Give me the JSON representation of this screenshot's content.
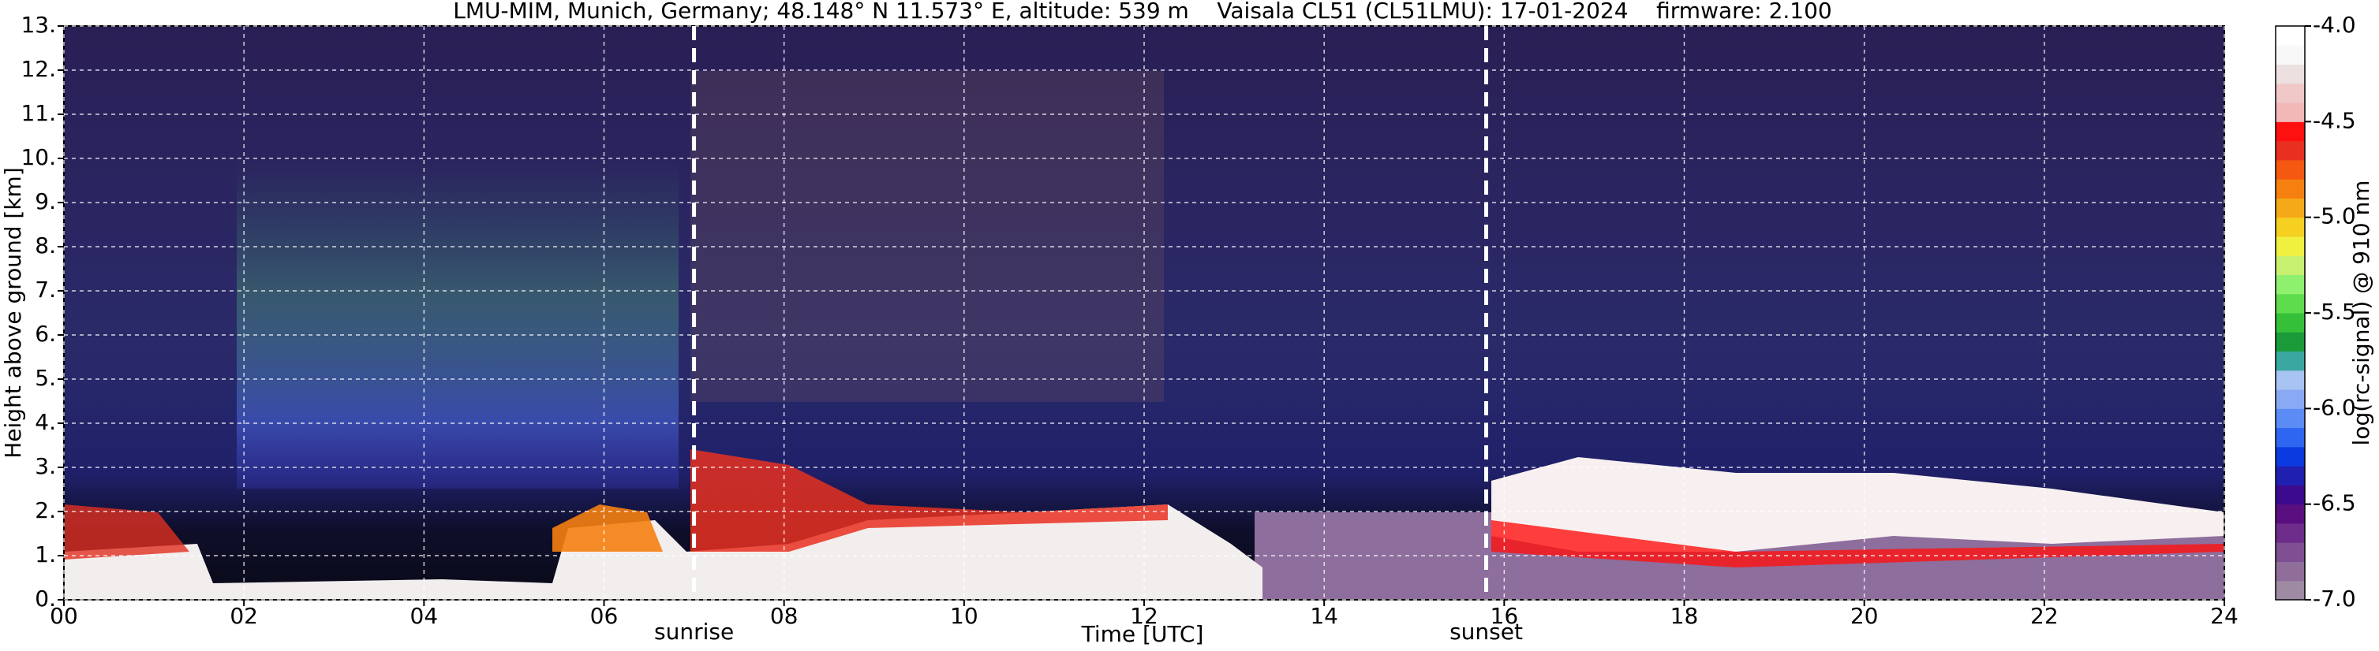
{
  "chart_data": {
    "type": "heatmap",
    "title": "LMU-MIM, Munich, Germany; 48.148° N 11.573° E, altitude: 539 m    Vaisala CL51 (CL51LMU): 17-01-2024    firmware: 2.100",
    "x_label": "Time [UTC]",
    "y_label": "Height above ground [km]",
    "xlim": [
      0,
      24
    ],
    "xticks": [
      {
        "value": 0,
        "label": "00"
      },
      {
        "value": 2,
        "label": "02"
      },
      {
        "value": 4,
        "label": "04"
      },
      {
        "value": 6,
        "label": "06"
      },
      {
        "value": 8,
        "label": "08"
      },
      10,
      12,
      14,
      16,
      18,
      20,
      22,
      24
    ],
    "ylim": [
      0,
      13
    ],
    "yticks": [
      {
        "value": 0,
        "label": "0."
      },
      {
        "value": 1,
        "label": "1."
      },
      {
        "value": 2,
        "label": "2."
      },
      {
        "value": 3,
        "label": "3."
      },
      {
        "value": 4,
        "label": "4."
      },
      {
        "value": 5,
        "label": "5."
      },
      {
        "value": 6,
        "label": "6."
      },
      {
        "value": 7,
        "label": "7."
      },
      {
        "value": 8,
        "label": "8."
      },
      {
        "value": 9,
        "label": "9."
      },
      {
        "value": 10,
        "label": "10."
      },
      {
        "value": 11,
        "label": "11."
      },
      {
        "value": 12,
        "label": "12."
      },
      {
        "value": 13,
        "label": "13."
      }
    ],
    "grid": true,
    "annotations": [
      {
        "text": "sunrise",
        "x": 7.0
      },
      {
        "text": "sunset",
        "x": 15.8
      }
    ],
    "colorbar": {
      "label": "log(rc-signal) @ 910 nm",
      "lim": [
        -7.0,
        -4.0
      ],
      "ticks": [
        {
          "value": -7.0,
          "label": "-7.0"
        },
        {
          "value": -6.5,
          "label": "-6.5"
        },
        {
          "value": -6.0,
          "label": "-6.0"
        },
        {
          "value": -5.5,
          "label": "-5.5"
        },
        {
          "value": -5.0,
          "label": "-5.0"
        },
        {
          "value": -4.5,
          "label": "-4.5"
        },
        {
          "value": -4.0,
          "label": "-4.0"
        }
      ],
      "colors": [
        "#9e8aa3",
        "#8f6e9a",
        "#7e4f92",
        "#6e2d8a",
        "#5a0f80",
        "#3c0a8c",
        "#1f1fb0",
        "#0a3ae0",
        "#2e66f2",
        "#5b8cf5",
        "#89a9f5",
        "#a7c4f2",
        "#3aa8a0",
        "#1b9a3a",
        "#36c03a",
        "#5edc4d",
        "#8ff070",
        "#c8f070",
        "#f0f040",
        "#f5d020",
        "#f5a818",
        "#f58010",
        "#f55810",
        "#e83020",
        "#ff1010",
        "#f2b8b8",
        "#f0c8c8",
        "#ece0e0",
        "#f8f8f8",
        "#ffffff"
      ]
    }
  }
}
